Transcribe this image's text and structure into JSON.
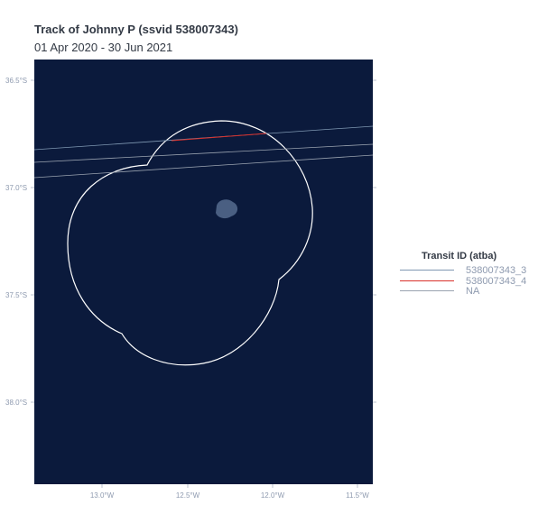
{
  "title": "Track of Johnny P (ssvid 538007343)",
  "subtitle": "01 Apr 2020 - 30 Jun 2021",
  "map": {
    "background": "#0b1a3c",
    "boundary_color": "#ffffff",
    "island_color": "#4a5f82",
    "y_ticks": [
      "36.5°S",
      "37.0°S",
      "37.5°S",
      "38.0°S"
    ],
    "x_ticks": [
      "13.0°W",
      "12.5°W",
      "12.0°W",
      "11.5°W"
    ]
  },
  "legend": {
    "title": "Transit ID (atba)",
    "items": [
      {
        "label": "538007343_3",
        "color": "#7f98b2"
      },
      {
        "label": "538007343_4",
        "color": "#d9302b"
      },
      {
        "label": "NA",
        "color": "#9aa3b0"
      }
    ]
  }
}
